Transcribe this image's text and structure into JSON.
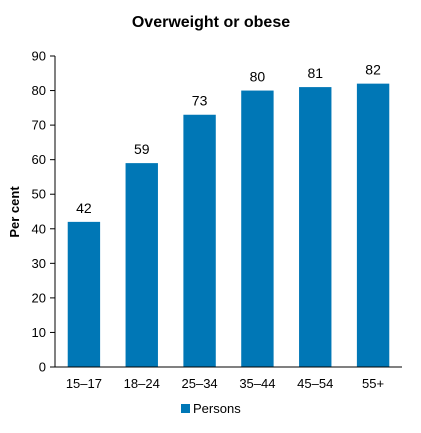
{
  "chart_data": {
    "type": "bar",
    "title": "Overweight or obese",
    "ylabel": "Per cent",
    "xlabel": "",
    "categories": [
      "15–17",
      "18–24",
      "25–34",
      "35–44",
      "45–54",
      "55+"
    ],
    "series": [
      {
        "name": "Persons",
        "values": [
          42,
          59,
          73,
          80,
          81,
          82
        ]
      }
    ],
    "ylim": [
      0,
      90
    ],
    "yticks": [
      0,
      10,
      20,
      30,
      40,
      50,
      60,
      70,
      80,
      90
    ],
    "grid": false,
    "legend": "bottom-center",
    "bar_color": "#0077b6"
  }
}
